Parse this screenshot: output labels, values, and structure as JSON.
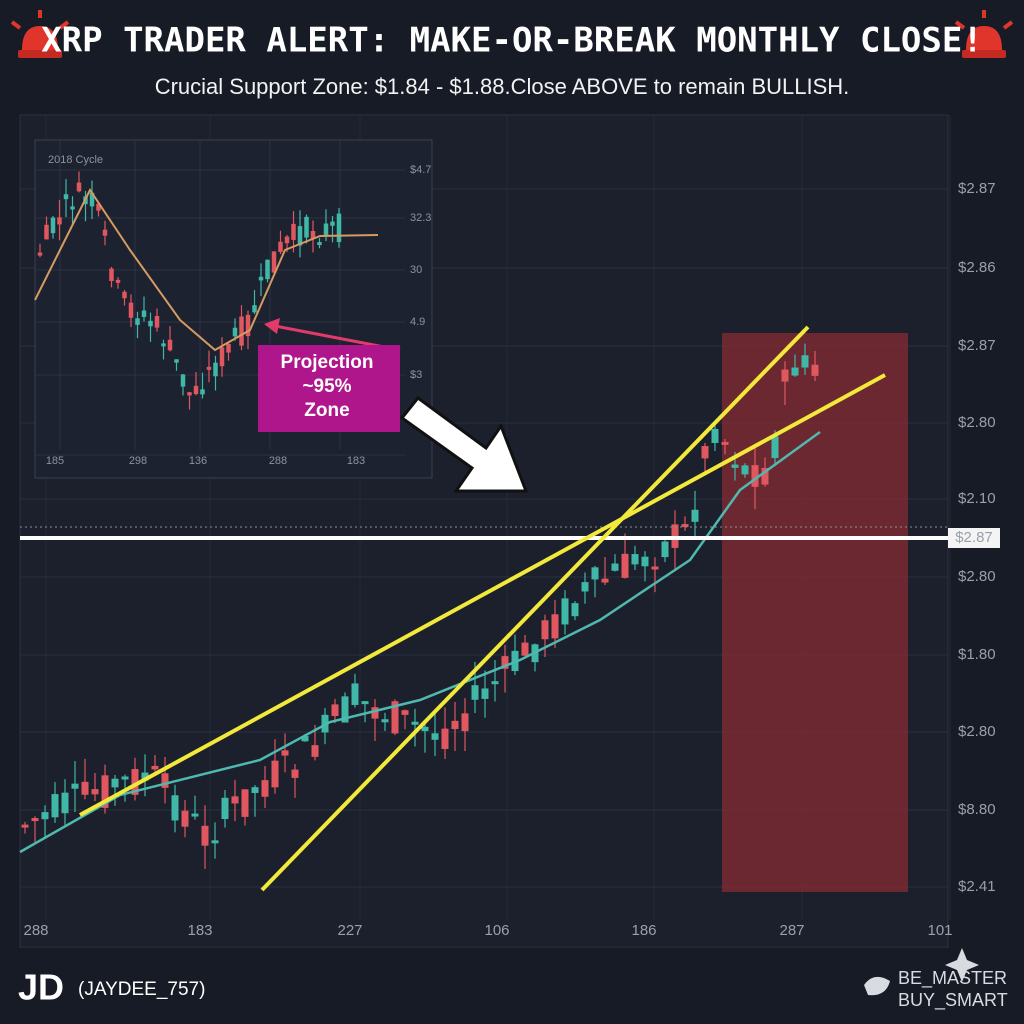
{
  "header": {
    "title": "XRP TRADER ALERT: MAKE-OR-BREAK MONTHLY CLOSE!",
    "subtitle": "Crucial Support Zone: $1.84 - $1.88.Close ABOVE to remain BULLISH."
  },
  "main_chart": {
    "y_labels": [
      "$2.87",
      "$2.86",
      "$2.87",
      "$2.80",
      "$2.10",
      "$2.87",
      "$2.80",
      "$1.80",
      "$2.80",
      "$8.80",
      "$2.41"
    ],
    "x_labels": [
      "288",
      "183",
      "227",
      "106",
      "186",
      "287",
      "101"
    ]
  },
  "inset": {
    "title": "2018 Cycle",
    "y_labels": [
      "$4.7",
      "32.3",
      "30",
      "4.9",
      "$3"
    ],
    "x_labels": [
      "185",
      "298",
      "136",
      "288",
      "183"
    ],
    "callout": [
      "Projection",
      "~95%",
      "Zone"
    ]
  },
  "footer": {
    "logo": "JD",
    "handle": "(JAYDEE_757)",
    "right_1": "BE_MASTER",
    "right_2": "BUY_SMART"
  }
}
